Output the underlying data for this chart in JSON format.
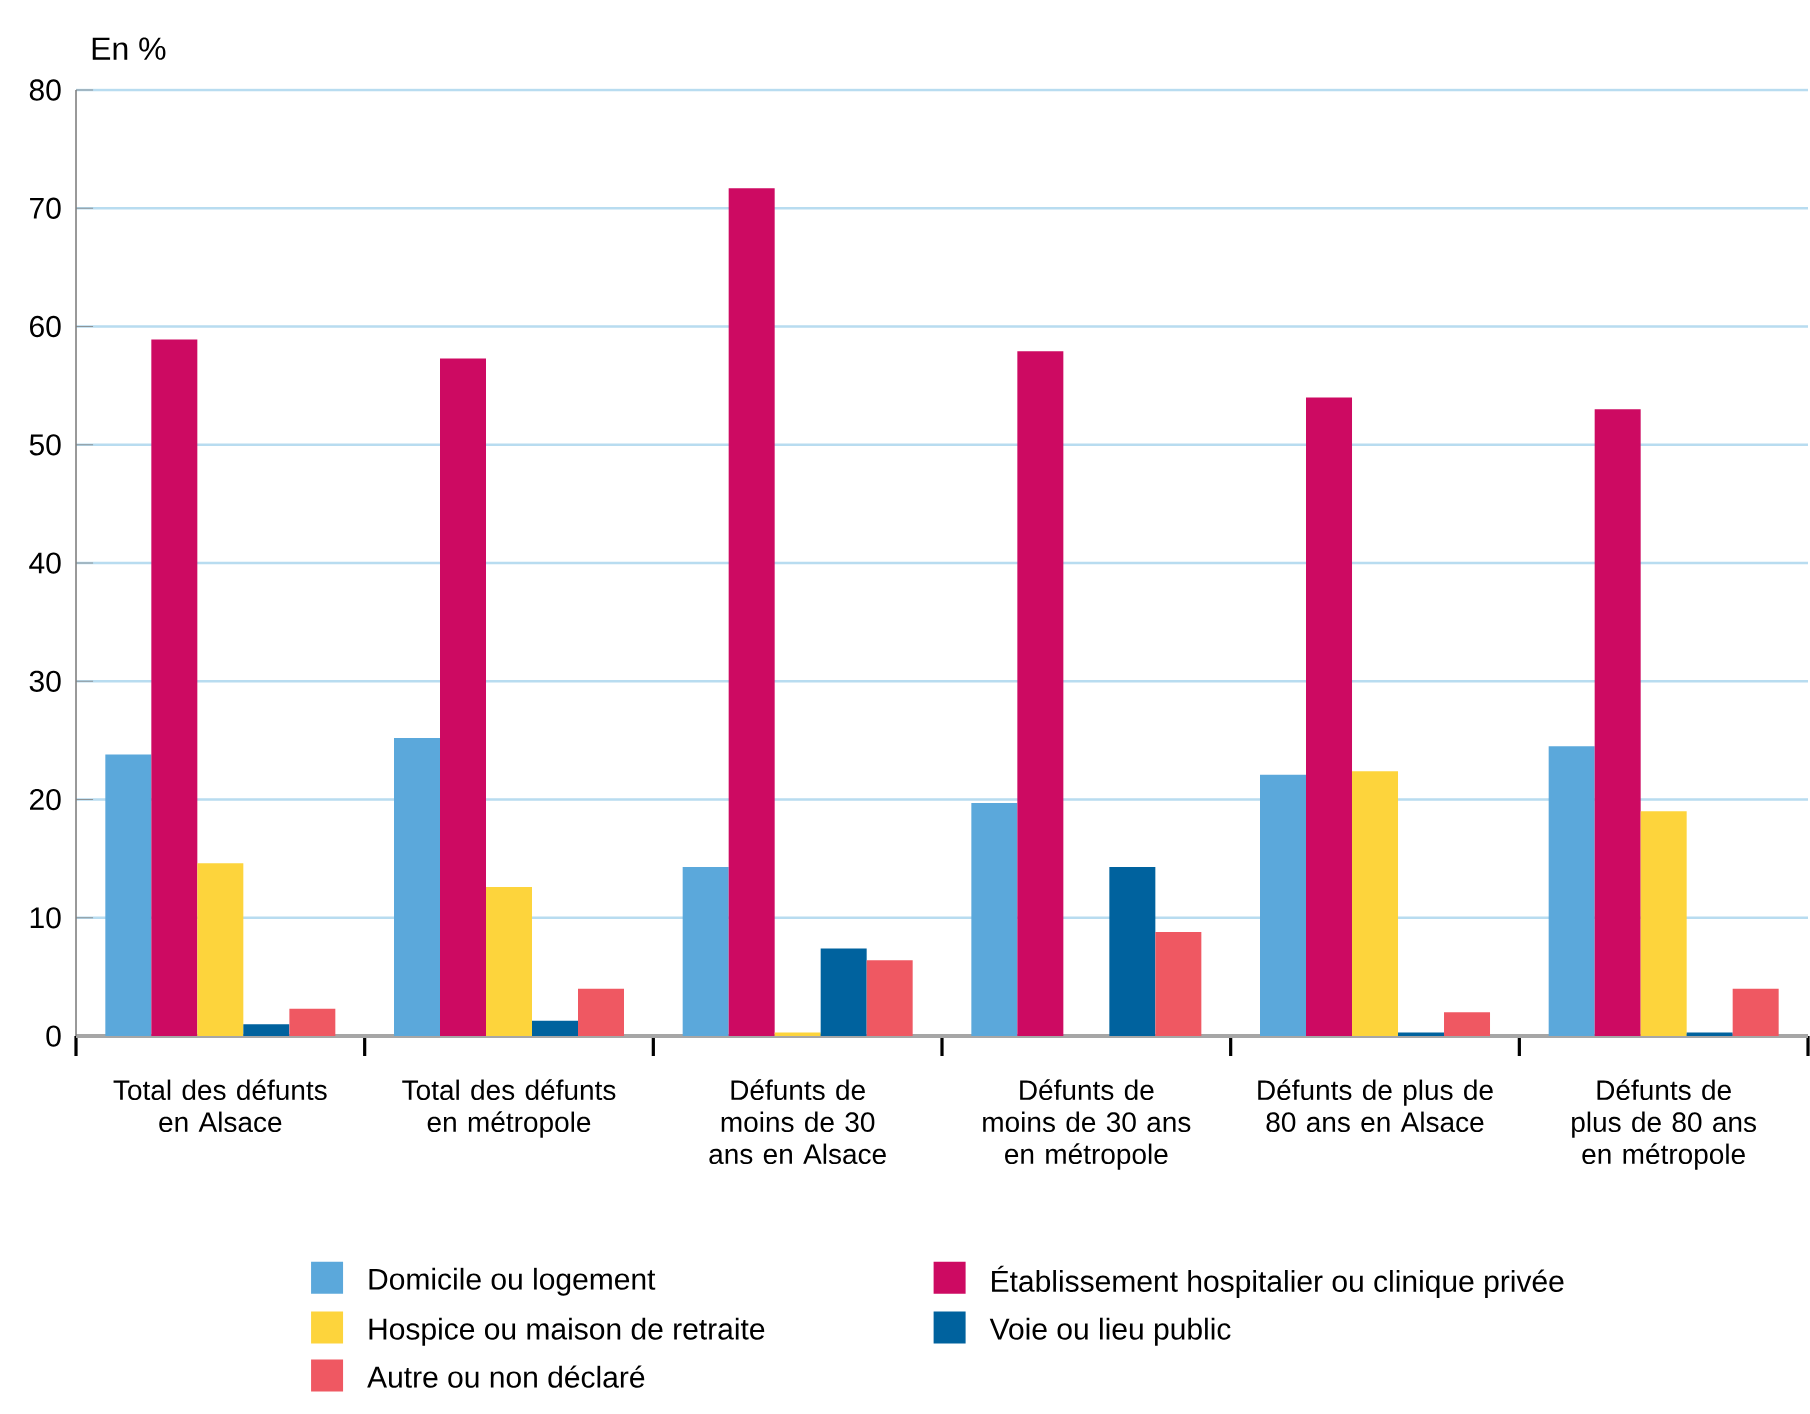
{
  "chart_data": {
    "type": "bar",
    "ylabel": "En %",
    "categories": [
      "Total des défunts en Alsace",
      "Total des défunts en  métropole",
      "Défunts de moins de 30 ans en Alsace",
      "Défunts de moins de 30 ans en métropole",
      "Défunts de plus de 80 ans en Alsace",
      "Défunts de plus de 80 ans en métropole"
    ],
    "series": [
      {
        "name": "Domicile ou logement",
        "color": "#5ba8db",
        "values": [
          23.8,
          25.2,
          14.3,
          19.7,
          22.1,
          24.5
        ]
      },
      {
        "name": "Établissement hospitalier ou clinique privée",
        "color": "#cd0a62",
        "values": [
          58.9,
          57.3,
          71.7,
          57.9,
          54.0,
          53.0
        ]
      },
      {
        "name": "Hospice ou maison de retraite",
        "color": "#fdd43c",
        "values": [
          14.6,
          12.6,
          0.3,
          0,
          22.4,
          19.0
        ]
      },
      {
        "name": "Voie ou lieu public",
        "color": "#00629e",
        "values": [
          1.0,
          1.3,
          7.4,
          14.3,
          0.3,
          0.3
        ]
      },
      {
        "name": "Autre ou non déclaré",
        "color": "#ef5862",
        "values": [
          2.3,
          4.0,
          6.4,
          8.8,
          2.0,
          4.0
        ]
      }
    ],
    "ylim": [
      0,
      80
    ],
    "yticks": [
      0,
      10,
      20,
      30,
      40,
      50,
      60,
      70,
      80
    ],
    "grid": "y",
    "legend": "bottom"
  }
}
